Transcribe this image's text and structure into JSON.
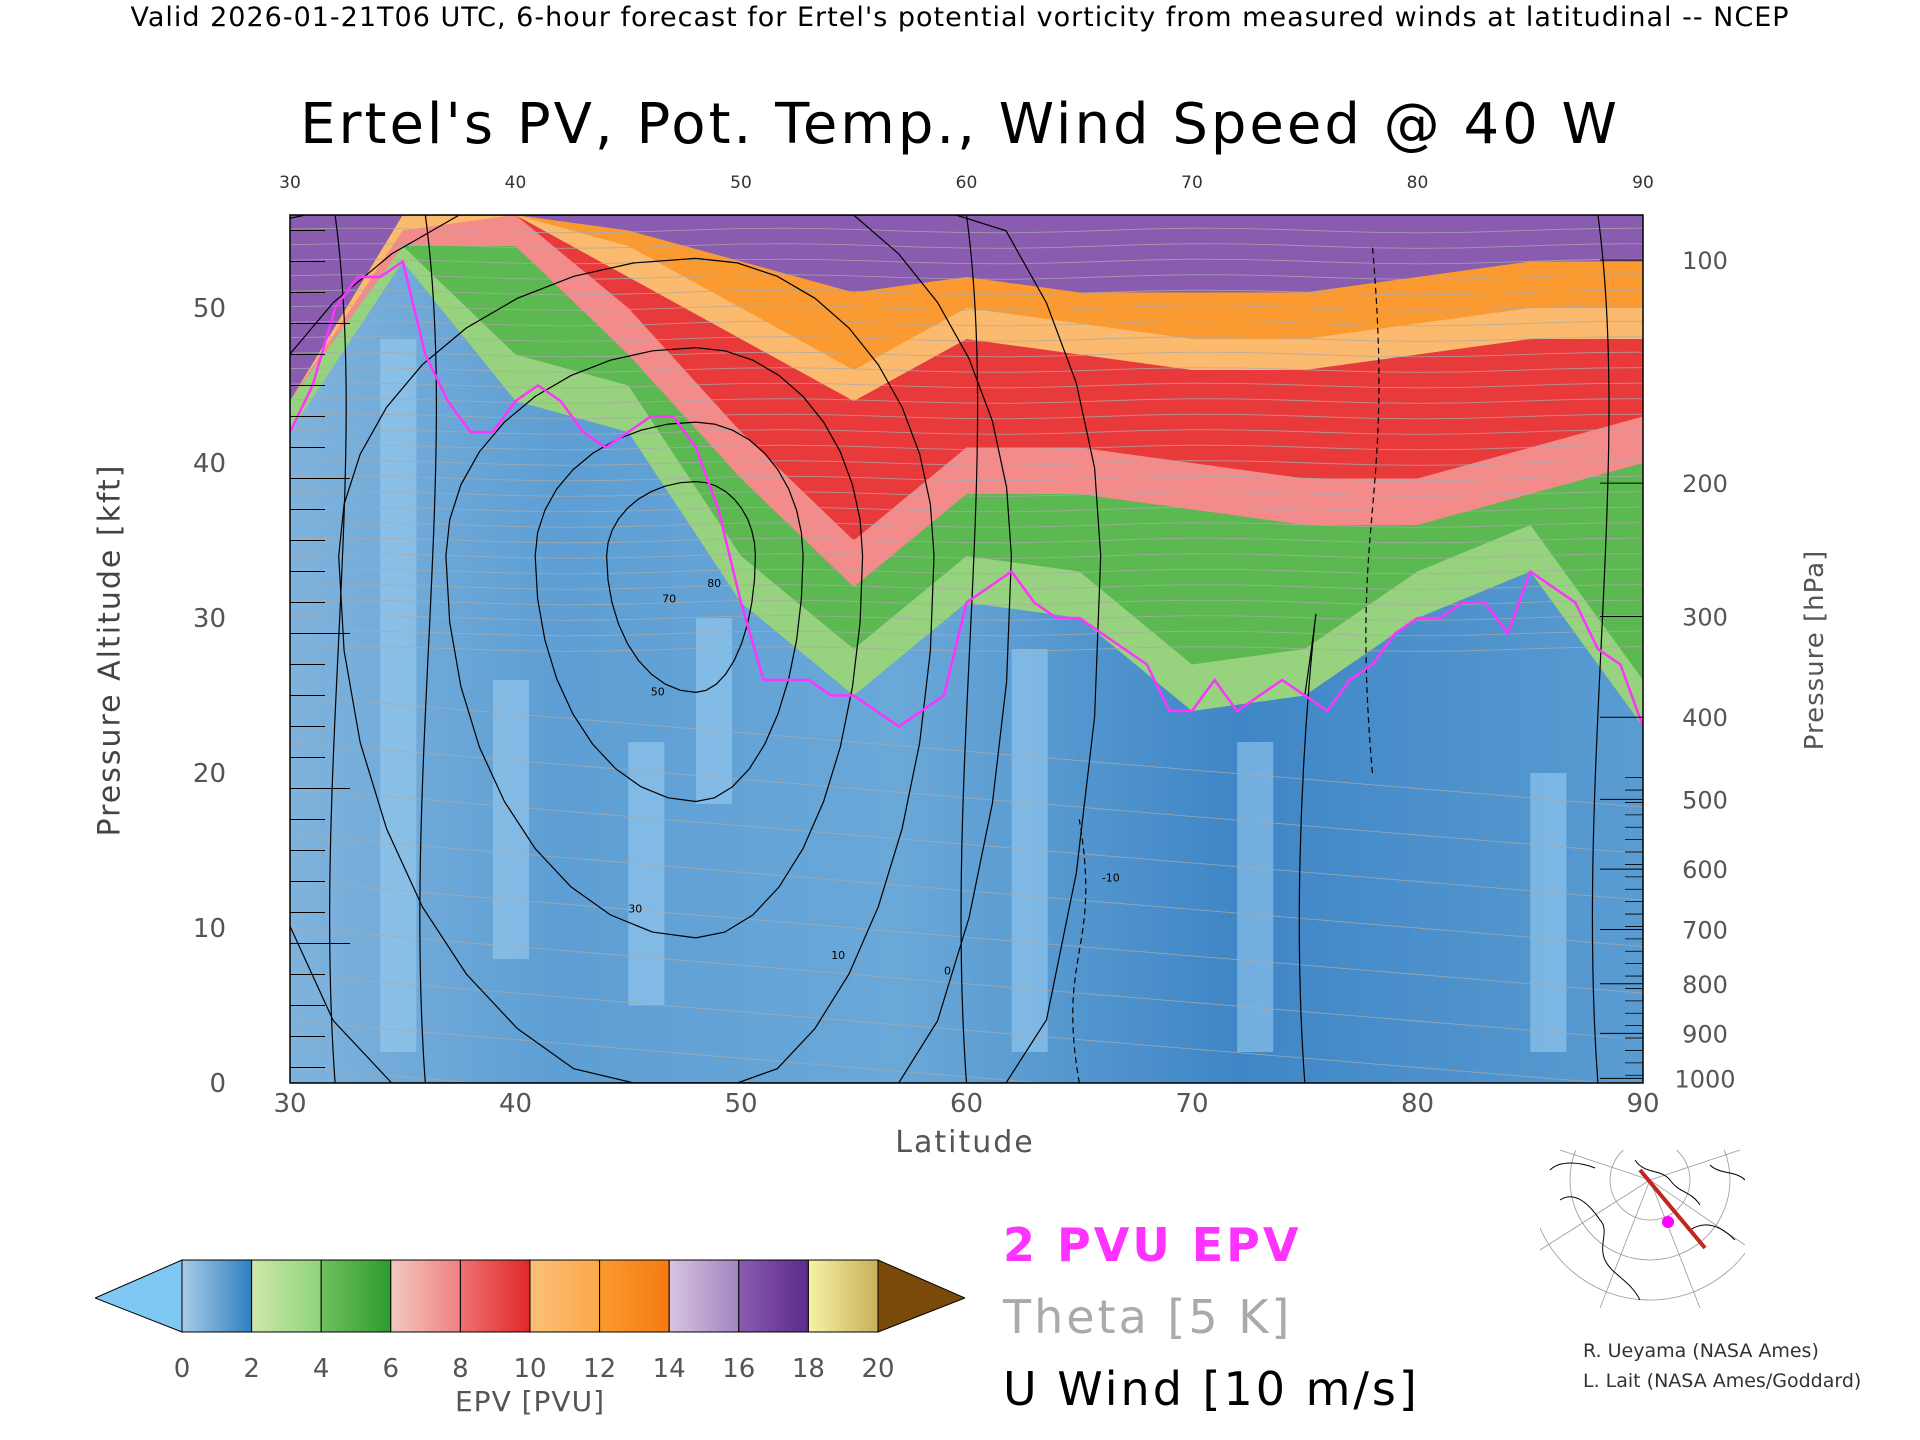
{
  "header": "Valid 2026-01-21T06 UTC, 6-hour forecast for Ertel's potential vorticity from measured winds at latitudinal -- NCEP",
  "chart_data": {
    "type": "heatmap",
    "title": "Ertel's PV, Pot. Temp., Wind Speed @ 40 W",
    "xlabel": "Latitude",
    "ylabel": "Pressure Altitude [kft]",
    "y2label": "Pressure [hPa]",
    "xlim": [
      30,
      90
    ],
    "ylim": [
      0,
      56
    ],
    "x_ticks": [
      "30",
      "40",
      "50",
      "60",
      "70",
      "80",
      "90"
    ],
    "y_ticks": [
      "0",
      "10",
      "20",
      "30",
      "40",
      "50"
    ],
    "y2_ticks": [
      {
        "label": "100",
        "kft": 53.1
      },
      {
        "label": "200",
        "kft": 38.7
      },
      {
        "label": "300",
        "kft": 30.1
      },
      {
        "label": "400",
        "kft": 23.6
      },
      {
        "label": "500",
        "kft": 18.3
      },
      {
        "label": "600",
        "kft": 13.8
      },
      {
        "label": "700",
        "kft": 9.9
      },
      {
        "label": "800",
        "kft": 6.4
      },
      {
        "label": "900",
        "kft": 3.2
      },
      {
        "label": "1000",
        "kft": 0.3
      }
    ],
    "tropopause_2pvu": {
      "lat": [
        30,
        31,
        32,
        33,
        34,
        35,
        36,
        37,
        38,
        39,
        40,
        41,
        42,
        43,
        44,
        45,
        46,
        47,
        48,
        49,
        50,
        51,
        52,
        53,
        54,
        55,
        56,
        57,
        58,
        59,
        60,
        61,
        62,
        63,
        64,
        65,
        66,
        67,
        68,
        69,
        70,
        71,
        72,
        73,
        74,
        75,
        76,
        77,
        78,
        79,
        80,
        81,
        82,
        83,
        84,
        85,
        86,
        87,
        88,
        89,
        90
      ],
      "kft": [
        42,
        45,
        50,
        52,
        52,
        53,
        47,
        44,
        42,
        42,
        44,
        45,
        44,
        42,
        41,
        42,
        43,
        43,
        41,
        37,
        31,
        26,
        26,
        26,
        25,
        25,
        24,
        23,
        24,
        25,
        31,
        32,
        33,
        31,
        30,
        30,
        29,
        28,
        27,
        24,
        24,
        26,
        24,
        25,
        26,
        25,
        24,
        26,
        27,
        29,
        30,
        30,
        31,
        31,
        29,
        33,
        32,
        31,
        28,
        27,
        23
      ]
    },
    "epv_bands_pvu": {
      "lat": [
        30,
        35,
        40,
        45,
        50,
        55,
        60,
        65,
        70,
        75,
        80,
        85,
        90
      ],
      "green_top_kft": [
        44,
        54,
        54,
        47,
        39,
        32,
        38,
        38,
        37,
        36,
        36,
        38,
        40
      ],
      "red_top_kft": [
        44,
        55,
        56,
        52,
        48,
        44,
        48,
        47,
        46,
        46,
        47,
        48,
        48
      ],
      "orange_top_kft": [
        44,
        56,
        56,
        55,
        53,
        51,
        52,
        51,
        51,
        51,
        52,
        53,
        53
      ]
    },
    "colorbar": {
      "label": "EPV [PVU]",
      "ticks": [
        "0",
        "2",
        "4",
        "6",
        "8",
        "10",
        "12",
        "14",
        "16",
        "18",
        "20"
      ],
      "segments": [
        {
          "from": 0,
          "to": 2,
          "colors": [
            "#a9cde8",
            "#2f7fbf"
          ]
        },
        {
          "from": 2,
          "to": 4,
          "colors": [
            "#cfe8a9",
            "#8fd27a"
          ]
        },
        {
          "from": 4,
          "to": 6,
          "colors": [
            "#6fc160",
            "#2f9a2f"
          ]
        },
        {
          "from": 6,
          "to": 8,
          "colors": [
            "#f2c9c0",
            "#f08080"
          ]
        },
        {
          "from": 8,
          "to": 10,
          "colors": [
            "#f07070",
            "#e02828"
          ]
        },
        {
          "from": 10,
          "to": 12,
          "colors": [
            "#fcc07a",
            "#fca84a"
          ]
        },
        {
          "from": 12,
          "to": 14,
          "colors": [
            "#fb9a30",
            "#f47a10"
          ]
        },
        {
          "from": 14,
          "to": 16,
          "colors": [
            "#d8c4e0",
            "#a085c0"
          ]
        },
        {
          "from": 16,
          "to": 18,
          "colors": [
            "#8a5cb0",
            "#5c2a8c"
          ]
        },
        {
          "from": 18,
          "to": 20,
          "colors": [
            "#f6f2a6",
            "#c8b05a"
          ]
        }
      ],
      "under_color": "#80c8f4",
      "over_color": "#7a4a0a"
    },
    "wind_contour_labels": [
      "-10",
      "0",
      "10",
      "30",
      "50",
      "70",
      "80"
    ],
    "legend": [
      "2 PVU EPV",
      "Theta [5 K]",
      "U Wind [10 m/s]"
    ]
  },
  "legend": {
    "pvu": "2 PVU EPV",
    "theta": "Theta [5 K]",
    "u_wind": "U Wind [10 m/s]"
  },
  "credits": {
    "line1": "R. Ueyama (NASA Ames)",
    "line2": "L. Lait (NASA Ames/Goddard)"
  },
  "colors": {
    "tropopause": "#ff33ff",
    "theta": "#aaaaaa",
    "wind": "#000000",
    "section_line": "#c0281e",
    "location_marker": "#ff00ff"
  },
  "inset": {
    "description_icon": "polar-map-icon"
  }
}
